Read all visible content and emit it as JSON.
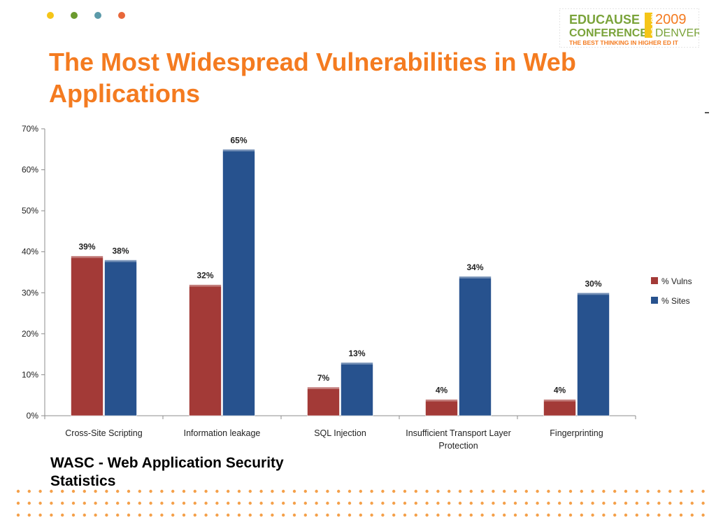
{
  "header": {
    "accent_dots": [
      "#f5c518",
      "#6b9a2e",
      "#5b9aa9",
      "#e8673a"
    ]
  },
  "logo": {
    "line1": "EDUCAUSE",
    "line2": "CONFERENCE",
    "side": "NOV 3-6",
    "year": "2009",
    "city": "DENVER",
    "tagline": "THE BEST THINKING IN HIGHER ED IT"
  },
  "slide": {
    "title_line1": "The Most Widespread Vulnerabilities in Web",
    "title_line2": "Applications",
    "caption_line1": "WASC - Web Application Security",
    "caption_line2": "Statistics"
  },
  "colors": {
    "title": "#f47b20",
    "vulns": "#a33a37",
    "sites": "#27528e",
    "dots": "#f4a04a"
  },
  "chart_data": {
    "type": "bar",
    "categories": [
      [
        "Cross-Site Scripting"
      ],
      [
        "Information leakage"
      ],
      [
        "SQL Injection"
      ],
      [
        "Insufficient Transport Layer",
        "Protection"
      ],
      [
        "Fingerprinting"
      ]
    ],
    "series": [
      {
        "name": "% Vulns",
        "values": [
          39,
          32,
          7,
          4,
          4
        ],
        "labels": [
          "39%",
          "32%",
          "7%",
          "4%",
          "4%"
        ],
        "color": "#a33a37"
      },
      {
        "name": "% Sites",
        "values": [
          38,
          65,
          13,
          34,
          30
        ],
        "labels": [
          "38%",
          "65%",
          "13%",
          "34%",
          "30%"
        ],
        "color": "#27528e"
      }
    ],
    "ylim": [
      0,
      70
    ],
    "yticks": [
      "0%",
      "10%",
      "20%",
      "30%",
      "40%",
      "50%",
      "60%",
      "70%"
    ],
    "grid": false,
    "legend": "right"
  }
}
